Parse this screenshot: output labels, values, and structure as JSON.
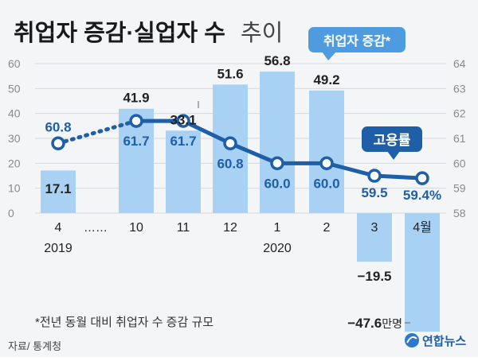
{
  "title_bold": "취업자 증감·실업자 수",
  "title_light": "추이",
  "bars_badge": "취업자 증감*",
  "rate_badge": "고용률",
  "footnote": "*전년 동월 대비 취업자 수 증감 규모",
  "source": "자료/ 통계청",
  "brand": "연합뉴스",
  "bar_unit": "만명",
  "ellipsis": "……",
  "colors": {
    "bar": "#a9d1f3",
    "line": "#1e5fa8",
    "badge": "#2f77c8",
    "title": "#1a1a1a",
    "axis_text": "#8a8a8a"
  },
  "chart_data": {
    "type": "bar",
    "categories": [
      "4",
      "10",
      "11",
      "12",
      "1",
      "2",
      "3",
      "4월"
    ],
    "year_labels": [
      {
        "index": 0,
        "label": "2019"
      },
      {
        "index": 4,
        "label": "2020"
      }
    ],
    "series": [
      {
        "name": "취업자 증감*",
        "type": "bar",
        "axis": "left",
        "values": [
          17.1,
          41.9,
          33.1,
          51.6,
          56.8,
          49.2,
          -19.5,
          -47.6
        ],
        "labels": [
          "17.1",
          "41.9",
          "33.1",
          "51.6",
          "56.8",
          "49.2",
          "−19.5",
          "−47.6"
        ]
      },
      {
        "name": "고용률",
        "type": "line",
        "axis": "right",
        "values": [
          60.8,
          61.7,
          61.7,
          60.8,
          60.0,
          60.0,
          59.5,
          59.4
        ],
        "labels": [
          "60.8",
          "61.7",
          "61.7",
          "60.8",
          "60.0",
          "60.0",
          "59.5",
          "59.4%"
        ]
      }
    ],
    "left_axis": {
      "range": [
        -48,
        60
      ],
      "ticks": [
        0,
        10,
        20,
        30,
        40,
        50,
        60
      ]
    },
    "right_axis": {
      "range": [
        58,
        64
      ],
      "ticks": [
        58,
        59,
        60,
        61,
        62,
        63,
        64
      ]
    },
    "grid": true,
    "gap_between": [
      0,
      1
    ]
  }
}
